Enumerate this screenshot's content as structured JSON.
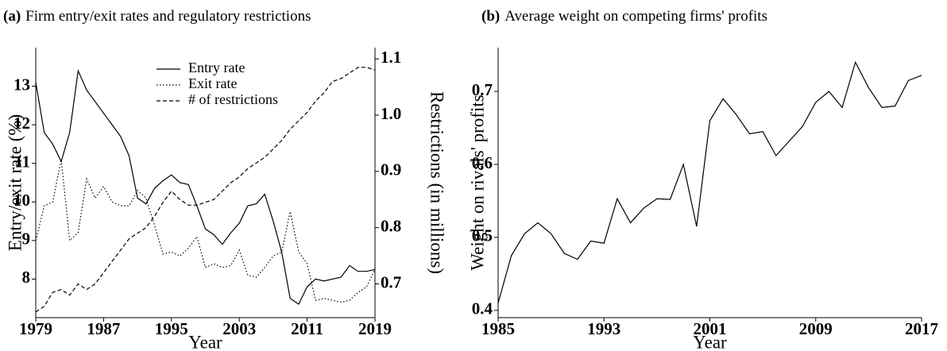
{
  "chart_data": [
    {
      "type": "line",
      "panel_label": "(a)",
      "title": "Firm entry/exit rates and regulatory restrictions",
      "xlabel": "Year",
      "ylabel": "Entry/exit rate (%)",
      "y2label": "Restrictions (in millions)",
      "x": [
        1979,
        1980,
        1981,
        1982,
        1983,
        1984,
        1985,
        1986,
        1987,
        1988,
        1989,
        1990,
        1991,
        1992,
        1993,
        1994,
        1995,
        1996,
        1997,
        1998,
        1999,
        2000,
        2001,
        2002,
        2003,
        2004,
        2005,
        2006,
        2007,
        2008,
        2009,
        2010,
        2011,
        2012,
        2013,
        2014,
        2015,
        2016,
        2017,
        2018,
        2019
      ],
      "series": [
        {
          "name": "Entry rate",
          "color": "#000000",
          "style": "solid",
          "values": [
            13.1,
            11.8,
            11.5,
            11.05,
            11.8,
            13.4,
            12.9,
            12.6,
            12.3,
            12.0,
            11.7,
            11.2,
            10.1,
            9.95,
            10.35,
            10.55,
            10.7,
            10.5,
            10.45,
            9.9,
            9.3,
            9.15,
            8.9,
            9.2,
            9.45,
            9.9,
            9.95,
            10.2,
            9.5,
            8.7,
            7.5,
            7.35,
            7.8,
            8.0,
            7.95,
            8.0,
            8.05,
            8.35,
            8.2,
            8.2,
            8.25
          ]
        },
        {
          "name": "Exit rate",
          "color": "#000000",
          "style": "dotted",
          "values": [
            9.0,
            9.9,
            10.0,
            11.1,
            9.0,
            9.2,
            10.6,
            10.1,
            10.4,
            10.0,
            9.9,
            9.9,
            10.3,
            10.1,
            9.4,
            8.65,
            8.7,
            8.6,
            8.8,
            9.1,
            8.3,
            8.4,
            8.3,
            8.35,
            8.75,
            8.1,
            8.05,
            8.3,
            8.6,
            8.7,
            9.75,
            8.7,
            8.4,
            7.45,
            7.5,
            7.45,
            7.4,
            7.45,
            7.65,
            7.8,
            8.25
          ]
        },
        {
          "name": "# of restrictions",
          "color": "#000000",
          "style": "dashed",
          "axis": "y2",
          "values": [
            0.65,
            0.66,
            0.685,
            0.69,
            0.68,
            0.7,
            0.69,
            0.7,
            0.72,
            0.74,
            0.76,
            0.78,
            0.79,
            0.8,
            0.82,
            0.845,
            0.865,
            0.85,
            0.84,
            0.84,
            0.845,
            0.85,
            0.865,
            0.88,
            0.89,
            0.905,
            0.915,
            0.925,
            0.94,
            0.955,
            0.975,
            0.99,
            1.005,
            1.025,
            1.04,
            1.06,
            1.065,
            1.075,
            1.085,
            1.085,
            1.08
          ]
        }
      ],
      "xlim": [
        1979,
        2019
      ],
      "xticks": [
        1979,
        1987,
        1995,
        2003,
        2011,
        2019
      ],
      "ylim": [
        7,
        14
      ],
      "yticks": [
        8,
        9,
        10,
        11,
        12,
        13
      ],
      "y2lim": [
        0.64,
        1.12
      ],
      "y2ticks": [
        0.7,
        0.8,
        0.9,
        {
          "value": 1.0,
          "label": "1.0"
        },
        1.1
      ],
      "legend": "upper center",
      "grid": false
    },
    {
      "type": "line",
      "panel_label": "(b)",
      "title": "Average weight on competing firms' profits",
      "xlabel": "Year",
      "ylabel": "Weight on rivals' profits",
      "x": [
        1985,
        1986,
        1987,
        1988,
        1989,
        1990,
        1991,
        1992,
        1993,
        1994,
        1995,
        1996,
        1997,
        1998,
        1999,
        2000,
        2001,
        2002,
        2003,
        2004,
        2005,
        2006,
        2007,
        2008,
        2009,
        2010,
        2011,
        2012,
        2013,
        2014,
        2015,
        2016,
        2017
      ],
      "series": [
        {
          "color": "#000000",
          "style": "solid",
          "values": [
            0.41,
            0.475,
            0.505,
            0.52,
            0.505,
            0.478,
            0.47,
            0.495,
            0.492,
            0.553,
            0.52,
            0.54,
            0.553,
            0.552,
            0.6,
            0.515,
            0.66,
            0.69,
            0.668,
            0.642,
            0.645,
            0.612,
            0.632,
            0.652,
            0.685,
            0.7,
            0.678,
            0.74,
            0.705,
            0.678,
            0.68,
            0.715,
            0.722
          ]
        }
      ],
      "xlim": [
        1985,
        2017
      ],
      "xticks": [
        1985,
        1993,
        2001,
        2009,
        2017
      ],
      "ylim": [
        0.39,
        0.76
      ],
      "yticks": [
        0.4,
        0.5,
        0.6,
        0.7
      ],
      "grid": false
    }
  ]
}
